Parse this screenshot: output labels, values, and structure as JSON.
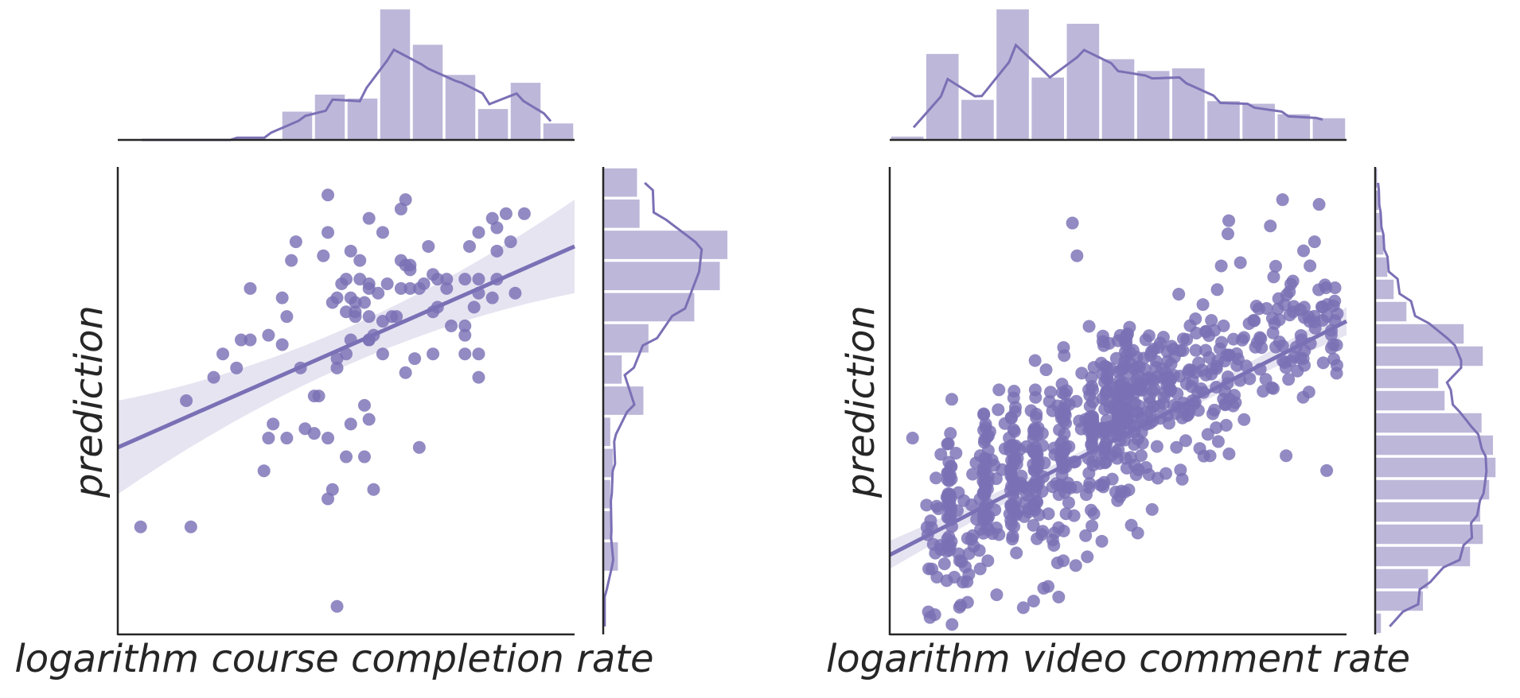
{
  "colors": {
    "accent": "#7a70b5",
    "histogram_fill": "#bdb7d9",
    "ci_band": "#e3e1f0",
    "axis": "#262626"
  },
  "chart_data": [
    {
      "type": "scatter",
      "panel": "left",
      "xlabel": "logarithm course completion rate",
      "ylabel": "prediction",
      "x_ticks_shown": false,
      "y_ticks_shown": false,
      "grid": false,
      "regression": {
        "y_at_x0": 0.4,
        "y_at_x1": 0.83,
        "ci_halfwidth_mid": 0.04,
        "ci_halfwidth_ends": 0.1
      },
      "points": [
        [
          0.05,
          0.23
        ],
        [
          0.16,
          0.23
        ],
        [
          0.48,
          0.06
        ],
        [
          0.46,
          0.94
        ],
        [
          0.63,
          0.93
        ],
        [
          0.62,
          0.91
        ],
        [
          0.89,
          0.9
        ],
        [
          0.82,
          0.89
        ],
        [
          0.83,
          0.87
        ],
        [
          0.55,
          0.89
        ],
        [
          0.58,
          0.86
        ],
        [
          0.39,
          0.84
        ],
        [
          0.46,
          0.86
        ],
        [
          0.68,
          0.83
        ],
        [
          0.38,
          0.8
        ],
        [
          0.45,
          0.81
        ],
        [
          0.51,
          0.82
        ],
        [
          0.53,
          0.8
        ],
        [
          0.62,
          0.8
        ],
        [
          0.63,
          0.79
        ],
        [
          0.64,
          0.79
        ],
        [
          0.64,
          0.78
        ],
        [
          0.69,
          0.77
        ],
        [
          0.7,
          0.76
        ],
        [
          0.72,
          0.76
        ],
        [
          0.76,
          0.76
        ],
        [
          0.79,
          0.76
        ],
        [
          0.66,
          0.74
        ],
        [
          0.67,
          0.75
        ],
        [
          0.72,
          0.74
        ],
        [
          0.79,
          0.73
        ],
        [
          0.49,
          0.75
        ],
        [
          0.5,
          0.76
        ],
        [
          0.53,
          0.76
        ],
        [
          0.55,
          0.75
        ],
        [
          0.57,
          0.73
        ],
        [
          0.55,
          0.74
        ],
        [
          0.59,
          0.75
        ],
        [
          0.62,
          0.74
        ],
        [
          0.64,
          0.74
        ],
        [
          0.47,
          0.71
        ],
        [
          0.48,
          0.72
        ],
        [
          0.51,
          0.72
        ],
        [
          0.52,
          0.71
        ],
        [
          0.54,
          0.71
        ],
        [
          0.5,
          0.69
        ],
        [
          0.52,
          0.69
        ],
        [
          0.55,
          0.68
        ],
        [
          0.58,
          0.67
        ],
        [
          0.6,
          0.68
        ],
        [
          0.61,
          0.68
        ],
        [
          0.69,
          0.69
        ],
        [
          0.7,
          0.7
        ],
        [
          0.78,
          0.7
        ],
        [
          0.36,
          0.72
        ],
        [
          0.37,
          0.68
        ],
        [
          0.29,
          0.74
        ],
        [
          0.29,
          0.63
        ],
        [
          0.33,
          0.64
        ],
        [
          0.27,
          0.63
        ],
        [
          0.36,
          0.62
        ],
        [
          0.4,
          0.57
        ],
        [
          0.52,
          0.68
        ],
        [
          0.55,
          0.63
        ],
        [
          0.56,
          0.64
        ],
        [
          0.5,
          0.6
        ],
        [
          0.48,
          0.59
        ],
        [
          0.48,
          0.57
        ],
        [
          0.51,
          0.63
        ],
        [
          0.55,
          0.63
        ],
        [
          0.73,
          0.66
        ],
        [
          0.76,
          0.64
        ],
        [
          0.76,
          0.6
        ],
        [
          0.79,
          0.6
        ],
        [
          0.79,
          0.55
        ],
        [
          0.58,
          0.6
        ],
        [
          0.63,
          0.56
        ],
        [
          0.65,
          0.59
        ],
        [
          0.69,
          0.6
        ],
        [
          0.26,
          0.57
        ],
        [
          0.23,
          0.6
        ],
        [
          0.21,
          0.55
        ],
        [
          0.15,
          0.5
        ],
        [
          0.43,
          0.51
        ],
        [
          0.44,
          0.51
        ],
        [
          0.54,
          0.49
        ],
        [
          0.34,
          0.45
        ],
        [
          0.33,
          0.42
        ],
        [
          0.37,
          0.42
        ],
        [
          0.41,
          0.44
        ],
        [
          0.46,
          0.42
        ],
        [
          0.51,
          0.45
        ],
        [
          0.55,
          0.46
        ],
        [
          0.66,
          0.4
        ],
        [
          0.5,
          0.38
        ],
        [
          0.54,
          0.38
        ],
        [
          0.32,
          0.35
        ],
        [
          0.47,
          0.31
        ],
        [
          0.56,
          0.31
        ],
        [
          0.46,
          0.29
        ],
        [
          0.43,
          0.43
        ],
        [
          0.86,
          0.84
        ],
        [
          0.87,
          0.73
        ],
        [
          0.83,
          0.76
        ],
        [
          0.82,
          0.72
        ],
        [
          0.76,
          0.66
        ],
        [
          0.85,
          0.9
        ],
        [
          0.77,
          0.83
        ],
        [
          0.79,
          0.86
        ],
        [
          0.83,
          0.82
        ]
      ],
      "marginal_x_hist": [
        0.0,
        0.0,
        0.0,
        0.0,
        0.0,
        0.22,
        0.35,
        0.32,
        1.0,
        0.73,
        0.5,
        0.24,
        0.44,
        0.13
      ],
      "marginal_y_hist": [
        0.0,
        0.0,
        0.12,
        0.07,
        0.06,
        0.08,
        0.06,
        0.32,
        0.15,
        0.36,
        0.72,
        0.92,
        0.98,
        0.29,
        0.27
      ]
    },
    {
      "type": "scatter",
      "panel": "right",
      "xlabel": "logarithm video comment rate",
      "ylabel": "prediction",
      "x_ticks_shown": false,
      "y_ticks_shown": false,
      "grid": false,
      "regression": {
        "y_at_x0": 0.17,
        "y_at_x1": 0.67,
        "ci_halfwidth_mid": 0.012,
        "ci_halfwidth_ends": 0.03
      },
      "marginal_x_hist": [
        0.03,
        0.66,
        0.31,
        1.0,
        0.48,
        0.89,
        0.62,
        0.53,
        0.55,
        0.3,
        0.28,
        0.2,
        0.17
      ],
      "marginal_y_hist": [
        0.05,
        0.38,
        0.42,
        0.75,
        0.85,
        0.83,
        0.9,
        0.95,
        0.93,
        0.84,
        0.55,
        0.5,
        0.85,
        0.7,
        0.25,
        0.15,
        0.1,
        0.07,
        0.05,
        0.03,
        0.02
      ]
    }
  ]
}
